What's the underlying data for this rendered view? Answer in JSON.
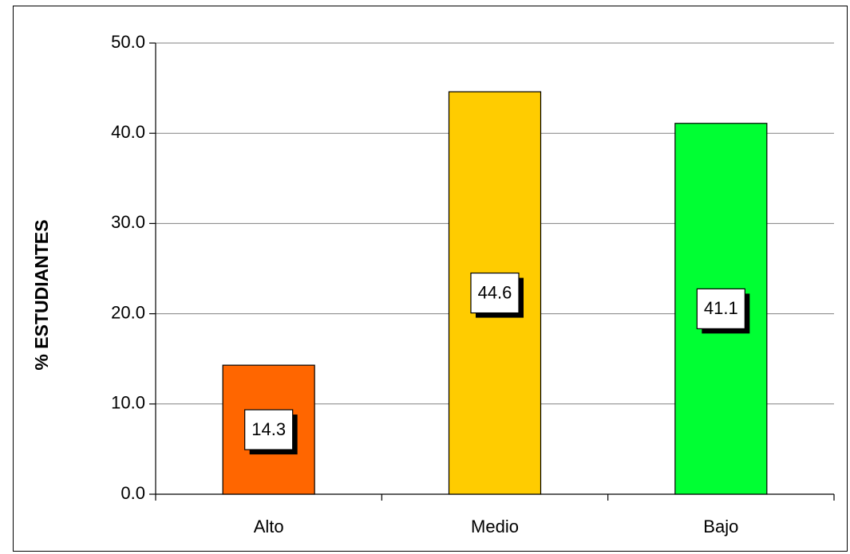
{
  "chart_data": {
    "type": "bar",
    "title": "",
    "xlabel": "",
    "ylabel": "% ESTUDIANTES",
    "ylim": [
      0,
      50
    ],
    "yticks": [
      "0.0",
      "10.0",
      "20.0",
      "30.0",
      "40.0",
      "50.0"
    ],
    "grid": true,
    "legend": "none",
    "categories": [
      "Alto",
      "Medio",
      "Bajo"
    ],
    "values": [
      14.3,
      44.6,
      41.1
    ],
    "data_labels": [
      "14.3",
      "44.6",
      "41.1"
    ],
    "colors": [
      "#ff6600",
      "#ffcc00",
      "#00ff33"
    ]
  }
}
